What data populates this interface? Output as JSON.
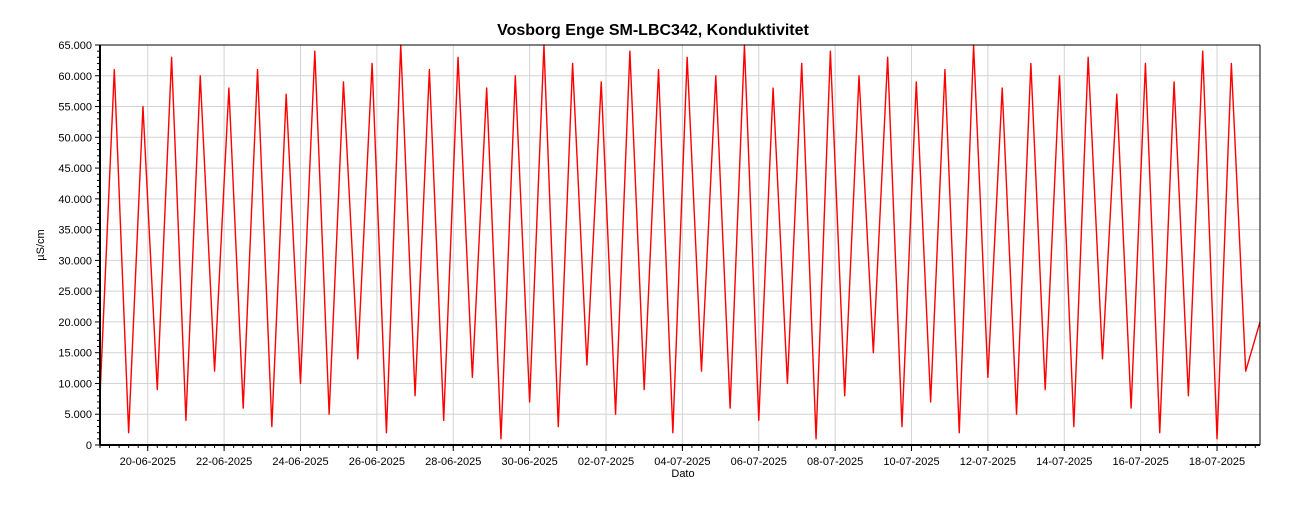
{
  "chart_data": {
    "type": "line",
    "title": "Vosborg Enge SM-LBC342, Konduktivitet",
    "xlabel": "Dato",
    "ylabel": "µS/cm",
    "x_range": [
      "2025-06-18T18:00",
      "2025-07-19T03:00"
    ],
    "ylim": [
      0,
      65000
    ],
    "grid": true,
    "legend": "none",
    "line_color": "#ff0000",
    "y_ticks": [
      {
        "value": 0,
        "label": "0"
      },
      {
        "value": 5000,
        "label": "5.000"
      },
      {
        "value": 10000,
        "label": "10.000"
      },
      {
        "value": 15000,
        "label": "15.000"
      },
      {
        "value": 20000,
        "label": "20.000"
      },
      {
        "value": 25000,
        "label": "25.000"
      },
      {
        "value": 30000,
        "label": "30.000"
      },
      {
        "value": 35000,
        "label": "35.000"
      },
      {
        "value": 40000,
        "label": "40.000"
      },
      {
        "value": 45000,
        "label": "45.000"
      },
      {
        "value": 50000,
        "label": "50.000"
      },
      {
        "value": 55000,
        "label": "55.000"
      },
      {
        "value": 60000,
        "label": "60.000"
      },
      {
        "value": 65000,
        "label": "65.000"
      }
    ],
    "x_ticks": [
      {
        "value": "2025-06-20",
        "label": "20-06-2025"
      },
      {
        "value": "2025-06-22",
        "label": "22-06-2025"
      },
      {
        "value": "2025-06-24",
        "label": "24-06-2025"
      },
      {
        "value": "2025-06-26",
        "label": "26-06-2025"
      },
      {
        "value": "2025-06-28",
        "label": "28-06-2025"
      },
      {
        "value": "2025-06-30",
        "label": "30-06-2025"
      },
      {
        "value": "2025-07-02",
        "label": "02-07-2025"
      },
      {
        "value": "2025-07-04",
        "label": "04-07-2025"
      },
      {
        "value": "2025-07-06",
        "label": "06-07-2025"
      },
      {
        "value": "2025-07-08",
        "label": "08-07-2025"
      },
      {
        "value": "2025-07-10",
        "label": "10-07-2025"
      },
      {
        "value": "2025-07-12",
        "label": "12-07-2025"
      },
      {
        "value": "2025-07-14",
        "label": "14-07-2025"
      },
      {
        "value": "2025-07-16",
        "label": "16-07-2025"
      },
      {
        "value": "2025-07-18",
        "label": "18-07-2025"
      }
    ],
    "series": [
      {
        "x": [
          "2025-06-18T18:00",
          "2025-06-19T03:00",
          "2025-06-19T12:00",
          "2025-06-19T21:00",
          "2025-06-20T06:00",
          "2025-06-20T15:00",
          "2025-06-21T00:00",
          "2025-06-21T09:00",
          "2025-06-21T18:00",
          "2025-06-22T03:00",
          "2025-06-22T12:00",
          "2025-06-22T21:00",
          "2025-06-23T06:00",
          "2025-06-23T15:00",
          "2025-06-24T00:00",
          "2025-06-24T09:00",
          "2025-06-24T18:00",
          "2025-06-25T03:00",
          "2025-06-25T12:00",
          "2025-06-25T21:00",
          "2025-06-26T06:00",
          "2025-06-26T15:00",
          "2025-06-27T00:00",
          "2025-06-27T09:00",
          "2025-06-27T18:00",
          "2025-06-28T03:00",
          "2025-06-28T12:00",
          "2025-06-28T21:00",
          "2025-06-29T06:00",
          "2025-06-29T15:00",
          "2025-06-30T00:00",
          "2025-06-30T09:00",
          "2025-06-30T18:00",
          "2025-07-01T03:00",
          "2025-07-01T12:00",
          "2025-07-01T21:00",
          "2025-07-02T06:00",
          "2025-07-02T15:00",
          "2025-07-03T00:00",
          "2025-07-03T09:00",
          "2025-07-03T18:00",
          "2025-07-04T03:00",
          "2025-07-04T12:00",
          "2025-07-04T21:00",
          "2025-07-05T06:00",
          "2025-07-05T15:00",
          "2025-07-06T00:00",
          "2025-07-06T09:00",
          "2025-07-06T18:00",
          "2025-07-07T03:00",
          "2025-07-07T12:00",
          "2025-07-07T21:00",
          "2025-07-08T06:00",
          "2025-07-08T15:00",
          "2025-07-09T00:00",
          "2025-07-09T09:00",
          "2025-07-09T18:00",
          "2025-07-10T03:00",
          "2025-07-10T12:00",
          "2025-07-10T21:00",
          "2025-07-11T06:00",
          "2025-07-11T15:00",
          "2025-07-12T00:00",
          "2025-07-12T09:00",
          "2025-07-12T18:00",
          "2025-07-13T03:00",
          "2025-07-13T12:00",
          "2025-07-13T21:00",
          "2025-07-14T06:00",
          "2025-07-14T15:00",
          "2025-07-15T00:00",
          "2025-07-15T09:00",
          "2025-07-15T18:00",
          "2025-07-16T03:00",
          "2025-07-16T12:00",
          "2025-07-16T21:00",
          "2025-07-17T06:00",
          "2025-07-17T15:00",
          "2025-07-18T00:00",
          "2025-07-18T09:00",
          "2025-07-18T18:00",
          "2025-07-19T03:00"
        ],
        "y": [
          8000,
          61000,
          2000,
          55000,
          9000,
          63000,
          4000,
          60000,
          12000,
          58000,
          6000,
          61000,
          3000,
          57000,
          10000,
          64000,
          5000,
          59000,
          14000,
          62000,
          2000,
          65000,
          8000,
          61000,
          4000,
          63000,
          11000,
          58000,
          1000,
          60000,
          7000,
          65000,
          3000,
          62000,
          13000,
          59000,
          5000,
          64000,
          9000,
          61000,
          2000,
          63000,
          12000,
          60000,
          6000,
          65000,
          4000,
          58000,
          10000,
          62000,
          1000,
          64000,
          8000,
          60000,
          15000,
          63000,
          3000,
          59000,
          7000,
          61000,
          2000,
          65000,
          11000,
          58000,
          5000,
          62000,
          9000,
          60000,
          3000,
          63000,
          14000,
          57000,
          6000,
          62000,
          2000,
          59000,
          8000,
          64000,
          1000,
          62000,
          12000,
          20000
        ]
      }
    ]
  }
}
